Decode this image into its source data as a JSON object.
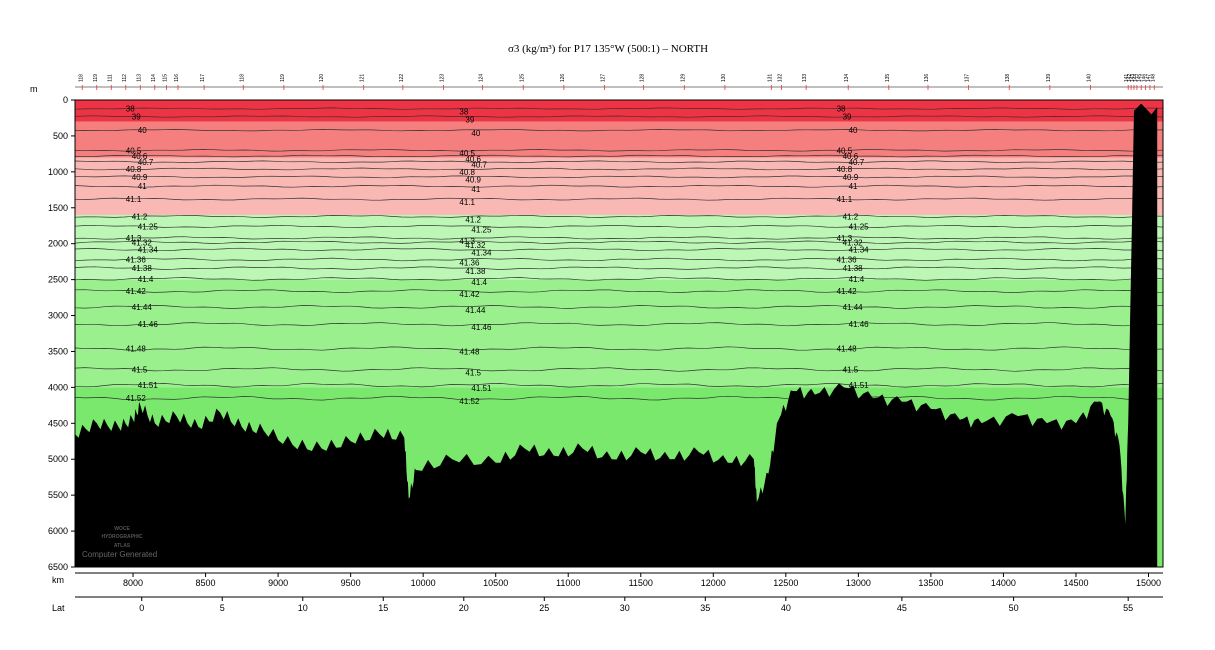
{
  "chart_data": {
    "type": "area",
    "title": "σ3 (kg/m³) for P17 135°W (500:1) – NORTH",
    "ylabel": "m",
    "xlabel": "km",
    "lat_label": "Lat",
    "xlim": [
      7600,
      15100
    ],
    "ylim": [
      6500,
      0
    ],
    "y_ticks": [
      0,
      500,
      1000,
      1500,
      2000,
      2500,
      3000,
      3500,
      4000,
      4500,
      5000,
      5500,
      6000,
      6500
    ],
    "km_ticks": [
      8000,
      8500,
      9000,
      9500,
      10000,
      10500,
      11000,
      11500,
      12000,
      12500,
      13000,
      13500,
      14000,
      14500,
      15000
    ],
    "lat_ticks": [
      {
        "label": "0",
        "km": 8060
      },
      {
        "label": "5",
        "km": 8615
      },
      {
        "label": "10",
        "km": 9170
      },
      {
        "label": "15",
        "km": 9725
      },
      {
        "label": "20",
        "km": 10280
      },
      {
        "label": "25",
        "km": 10835
      },
      {
        "label": "30",
        "km": 11390
      },
      {
        "label": "35",
        "km": 11945
      },
      {
        "label": "40",
        "km": 12500
      },
      {
        "label": "45",
        "km": 13300
      },
      {
        "label": "50",
        "km": 14070
      },
      {
        "label": "55",
        "km": 14860
      }
    ],
    "fill_bands": [
      {
        "from": 0,
        "to": 300,
        "color": "#ee3344"
      },
      {
        "from": 300,
        "to": 800,
        "color": "#f57e7e"
      },
      {
        "from": 800,
        "to": 1600,
        "color": "#f9b8b3"
      },
      {
        "from": 1600,
        "to": 2500,
        "color": "#bdf7b5"
      },
      {
        "from": 2500,
        "to": 4000,
        "color": "#99f08c"
      },
      {
        "from": 4000,
        "to": 6500,
        "color": "#7ae86c"
      }
    ],
    "contours": [
      {
        "level": "38",
        "depth": 120
      },
      {
        "level": "39",
        "depth": 230
      },
      {
        "level": "40",
        "depth": 420
      },
      {
        "level": "40.5",
        "depth": 700
      },
      {
        "level": "40.6",
        "depth": 780
      },
      {
        "level": "40.7",
        "depth": 860
      },
      {
        "level": "40.8",
        "depth": 960
      },
      {
        "level": "40.9",
        "depth": 1070
      },
      {
        "level": "41",
        "depth": 1200
      },
      {
        "level": "41.1",
        "depth": 1380
      },
      {
        "level": "41.2",
        "depth": 1620
      },
      {
        "level": "41.25",
        "depth": 1760
      },
      {
        "level": "41.3",
        "depth": 1920
      },
      {
        "level": "41.32",
        "depth": 1980
      },
      {
        "level": "41.34",
        "depth": 2080
      },
      {
        "level": "41.36",
        "depth": 2220
      },
      {
        "level": "41.38",
        "depth": 2340
      },
      {
        "level": "41.4",
        "depth": 2490
      },
      {
        "level": "41.42",
        "depth": 2660
      },
      {
        "level": "41.44",
        "depth": 2880
      },
      {
        "level": "41.46",
        "depth": 3120
      },
      {
        "level": "41.48",
        "depth": 3460
      },
      {
        "level": "41.5",
        "depth": 3750
      },
      {
        "level": "41.51",
        "depth": 3970
      },
      {
        "level": "41.52",
        "depth": 4150
      }
    ],
    "bottom_profile": [
      {
        "km": 7600,
        "depth": 4650
      },
      {
        "km": 7750,
        "depth": 4500
      },
      {
        "km": 7900,
        "depth": 4550
      },
      {
        "km": 8000,
        "depth": 4450
      },
      {
        "km": 8050,
        "depth": 4250
      },
      {
        "km": 8150,
        "depth": 4500
      },
      {
        "km": 8300,
        "depth": 4400
      },
      {
        "km": 8450,
        "depth": 4550
      },
      {
        "km": 8600,
        "depth": 4350
      },
      {
        "km": 8750,
        "depth": 4550
      },
      {
        "km": 8900,
        "depth": 4600
      },
      {
        "km": 9100,
        "depth": 4800
      },
      {
        "km": 9300,
        "depth": 4850
      },
      {
        "km": 9500,
        "depth": 4750
      },
      {
        "km": 9700,
        "depth": 4650
      },
      {
        "km": 9870,
        "depth": 4700
      },
      {
        "km": 9900,
        "depth": 5550
      },
      {
        "km": 9950,
        "depth": 5150
      },
      {
        "km": 10200,
        "depth": 5000
      },
      {
        "km": 10500,
        "depth": 5050
      },
      {
        "km": 10700,
        "depth": 4850
      },
      {
        "km": 10900,
        "depth": 4950
      },
      {
        "km": 11100,
        "depth": 4850
      },
      {
        "km": 11300,
        "depth": 5000
      },
      {
        "km": 11500,
        "depth": 4900
      },
      {
        "km": 11700,
        "depth": 5000
      },
      {
        "km": 11900,
        "depth": 4900
      },
      {
        "km": 12100,
        "depth": 5050
      },
      {
        "km": 12280,
        "depth": 5000
      },
      {
        "km": 12300,
        "depth": 5600
      },
      {
        "km": 12380,
        "depth": 5200
      },
      {
        "km": 12450,
        "depth": 4450
      },
      {
        "km": 12550,
        "depth": 4050
      },
      {
        "km": 12700,
        "depth": 4100
      },
      {
        "km": 12900,
        "depth": 4000
      },
      {
        "km": 13100,
        "depth": 4150
      },
      {
        "km": 13300,
        "depth": 4200
      },
      {
        "km": 13500,
        "depth": 4300
      },
      {
        "km": 13700,
        "depth": 4450
      },
      {
        "km": 13850,
        "depth": 4500
      },
      {
        "km": 14100,
        "depth": 4400
      },
      {
        "km": 14300,
        "depth": 4500
      },
      {
        "km": 14500,
        "depth": 4500
      },
      {
        "km": 14650,
        "depth": 4200
      },
      {
        "km": 14740,
        "depth": 4400
      },
      {
        "km": 14800,
        "depth": 4800
      },
      {
        "km": 14840,
        "depth": 5900
      },
      {
        "km": 14860,
        "depth": 4500
      },
      {
        "km": 14900,
        "depth": 150
      },
      {
        "km": 14950,
        "depth": 50
      },
      {
        "km": 15020,
        "depth": 200
      },
      {
        "km": 15060,
        "depth": 100
      },
      {
        "km": 15060,
        "depth": 6500
      }
    ],
    "label_positions_km": [
      7950,
      10250,
      12850
    ],
    "stations_km": [
      7650,
      7750,
      7850,
      7950,
      8050,
      8150,
      8230,
      8310,
      8490,
      8760,
      9040,
      9310,
      9590,
      9860,
      10140,
      10410,
      10690,
      10970,
      11250,
      11520,
      11800,
      12080,
      12400,
      12470,
      12640,
      12930,
      13210,
      13480,
      13760,
      14040,
      14320,
      14600,
      14860,
      14880,
      14900,
      14920,
      14950,
      14980,
      15010,
      15040
    ]
  },
  "station_labels": [
    "118",
    "119",
    "111",
    "112",
    "113",
    "114",
    "115",
    "116",
    "117",
    "118",
    "119",
    "120",
    "121",
    "122",
    "123",
    "124",
    "125",
    "126",
    "127",
    "128",
    "129",
    "130",
    "131",
    "132",
    "133",
    "134",
    "135",
    "136",
    "137",
    "138",
    "139",
    "140",
    "141",
    "142",
    "143",
    "144",
    "145",
    "146",
    "147",
    "148"
  ],
  "watermark": {
    "line1": "WOCE",
    "line2": "HYDROGRAPHIC",
    "line3": "ATLAS",
    "line4": "Computer Generated"
  },
  "colors": {
    "seafloor": "#000000",
    "contour": "#333333",
    "axis": "#000000"
  }
}
